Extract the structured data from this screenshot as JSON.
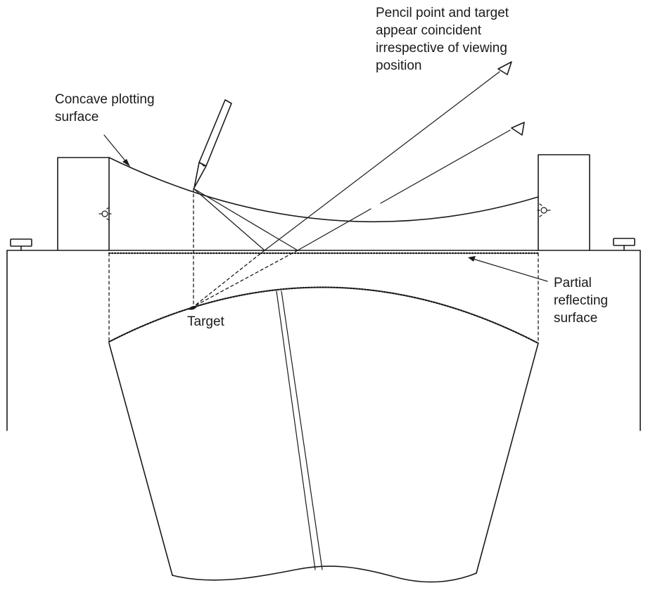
{
  "labels": {
    "pencil_note_line1": "Pencil point and target",
    "pencil_note_line2": "appear coincident",
    "pencil_note_line3": "irrespective of viewing",
    "pencil_note_line4": "position",
    "concave_line1": "Concave plotting",
    "concave_line2": "surface",
    "target": "Target",
    "partial_line1": "Partial",
    "partial_line2": "reflecting",
    "partial_line3": "surface"
  },
  "colors": {
    "ink": "#1a1a1a",
    "background": "#ffffff"
  },
  "icons": [
    "pencil-icon",
    "eye-icon",
    "lamp-icon",
    "leveling-screw-icon"
  ]
}
